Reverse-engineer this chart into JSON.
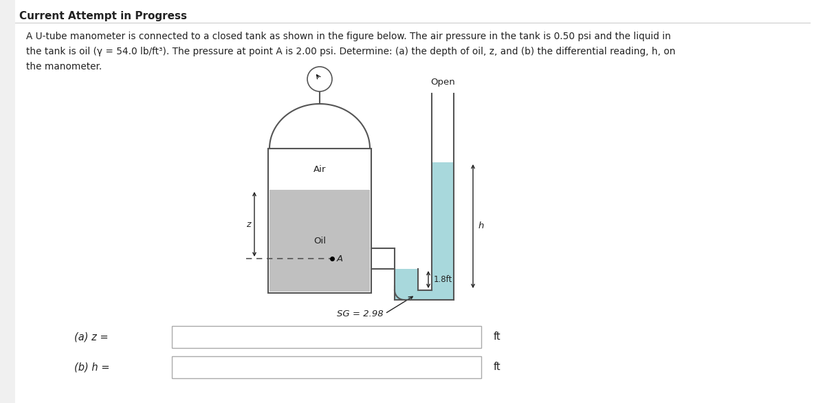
{
  "title": "Current Attempt in Progress",
  "line1": "A U-tube manometer is connected to a closed tank as shown in the figure below. The air pressure in the tank is 0.50 psi and the liquid in",
  "line2": "the tank is oil (γ = 54.0 lb/ft³). The pressure at point A is 2.00 psi. Determine: (a) the depth of oil, z, and (b) the differential reading, h, on",
  "line3": "the manometer.",
  "white": "#ffffff",
  "gray_fill": "#c0c0c0",
  "teal_fill": "#a8d8dc",
  "border_color": "#555555",
  "text_color": "#222222",
  "bg_color": "#f0f0f0",
  "label_air": "Air",
  "label_oil": "Oil",
  "label_open": "Open",
  "label_sg": "SG = 2.98",
  "label_18ft": "1.8ft",
  "label_z": "z",
  "label_h": "h",
  "label_A": "A",
  "ans_a": "(a) z =",
  "ans_b": "(b) h =",
  "ans_unit": "ft"
}
